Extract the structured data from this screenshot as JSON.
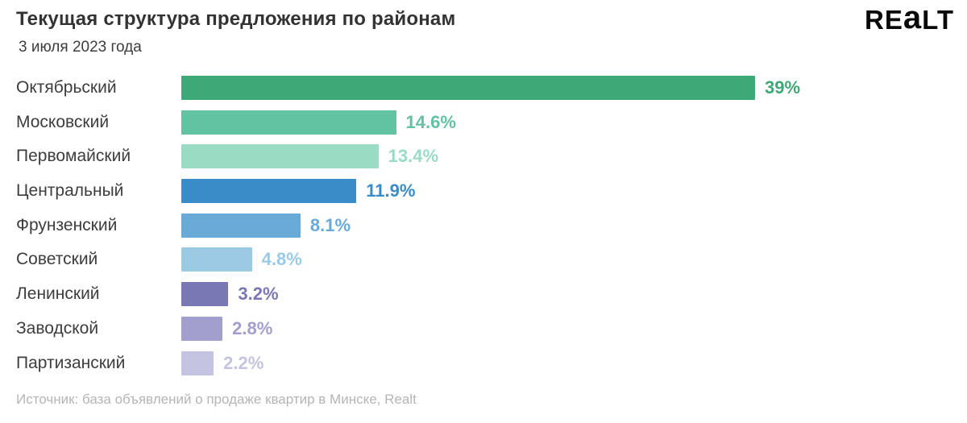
{
  "header": {
    "title": "Текущая структура предложения по районам",
    "subtitle": "3 июля 2023 года",
    "logo": {
      "part1": "RE",
      "part2": "a",
      "part3": "LT"
    }
  },
  "footer": {
    "source": "Источник: база объявлений о продаже квартир в Минске, Realt"
  },
  "chart_data": {
    "type": "bar",
    "orientation": "horizontal",
    "title": "Текущая структура предложения по районам",
    "subtitle": "3 июля 2023 года",
    "xlabel": "",
    "ylabel": "",
    "xlim": [
      0,
      39
    ],
    "grid": false,
    "legend": false,
    "value_suffix": "%",
    "categories": [
      "Октябрьский",
      "Московский",
      "Первомайский",
      "Центральный",
      "Фрунзенский",
      "Советский",
      "Ленинский",
      "Заводской",
      "Партизанский"
    ],
    "values": [
      39,
      14.6,
      13.4,
      11.9,
      8.1,
      4.8,
      3.2,
      2.8,
      2.2
    ],
    "value_labels": [
      "39%",
      "14.6%",
      "13.4%",
      "11.9%",
      "8.1%",
      "4.8%",
      "3.2%",
      "2.8%",
      "2.2%"
    ],
    "colors": [
      "#3FA877",
      "#61C3A1",
      "#9ADBC4",
      "#3A8CC8",
      "#69AAD9",
      "#9CCAE5",
      "#7A77B5",
      "#A29ECD",
      "#C4C3E1"
    ]
  }
}
